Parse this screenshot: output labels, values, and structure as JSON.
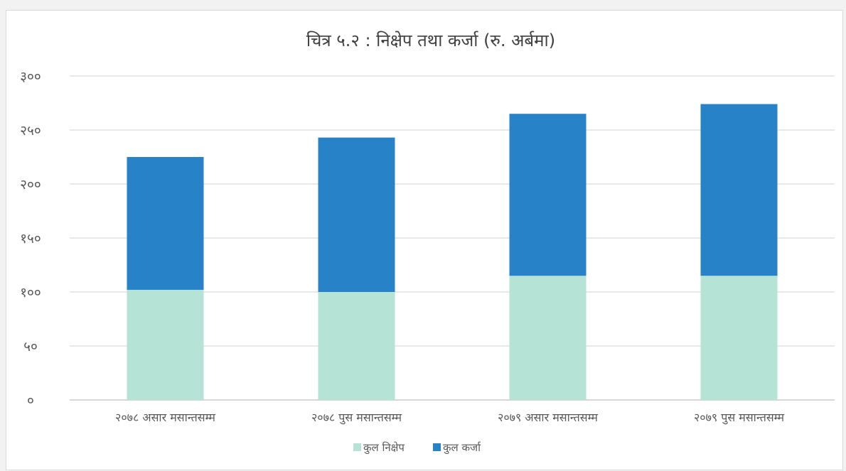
{
  "chart_data": {
    "type": "bar",
    "stacked": true,
    "title": "चित्र ५.२ : निक्षेप तथा कर्जा (रु. अर्बमा)",
    "categories": [
      "२०७८ असार मसान्तसम्म",
      "२०७८ पुस मसान्तसम्म",
      "२०७९ असार मसान्तसम्म",
      "२०७९ पुस मसान्तसम्म"
    ],
    "series": [
      {
        "name": "कुल निक्षेप",
        "color": "#b5e3d6",
        "values": [
          102,
          100,
          115,
          115
        ]
      },
      {
        "name": "कुल कर्जा",
        "color": "#2782c8",
        "values": [
          123,
          143,
          150,
          159
        ]
      }
    ],
    "ylim": [
      0,
      300
    ],
    "yticks": [
      0,
      50,
      100,
      150,
      200,
      250,
      300
    ],
    "ytick_labels": [
      "०",
      "५०",
      "१००",
      "१५०",
      "२००",
      "२५०",
      "३००"
    ],
    "grid": true,
    "legend_position": "bottom"
  }
}
